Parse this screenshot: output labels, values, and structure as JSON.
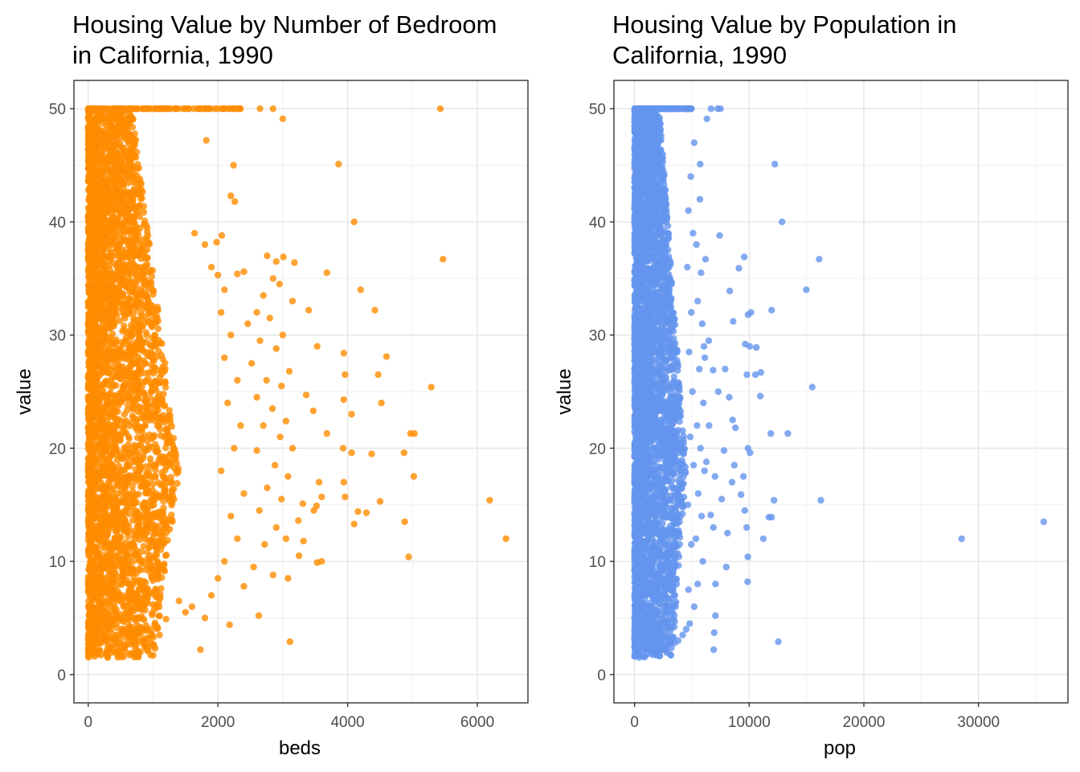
{
  "chart_data": [
    {
      "type": "scatter",
      "title": "Housing Value by Number of Bedroom\nin California, 1990",
      "xlabel": "beds",
      "ylabel": "value",
      "xlim": [
        -220,
        6780
      ],
      "ylim": [
        -2.5,
        52.5
      ],
      "xticks": [
        0,
        2000,
        4000,
        6000
      ],
      "xtick_labels": [
        "0",
        "2000",
        "4000",
        "6000"
      ],
      "yticks": [
        0,
        10,
        20,
        30,
        40,
        50
      ],
      "ytick_labels": [
        "0",
        "10",
        "20",
        "30",
        "40",
        "50"
      ],
      "xminor": [
        1000,
        3000,
        5000
      ],
      "yminor": [
        5,
        15,
        25,
        35,
        45
      ],
      "grid": true,
      "color": "#FF8C00",
      "dense_cloud": {
        "x_min": 0,
        "x_typical_max": 1400,
        "y_min": 1.5,
        "y_max": 50,
        "approx_points": 4000
      },
      "points": [
        [
          5430,
          50
        ],
        [
          3000,
          49.1
        ],
        [
          3860,
          45.1
        ],
        [
          4100,
          40
        ],
        [
          5470,
          36.7
        ],
        [
          3680,
          35.5
        ],
        [
          4200,
          34
        ],
        [
          3400,
          32.2
        ],
        [
          4420,
          32.2
        ],
        [
          3530,
          29
        ],
        [
          3940,
          28.4
        ],
        [
          4600,
          28.1
        ],
        [
          3960,
          26.5
        ],
        [
          4470,
          26.5
        ],
        [
          5290,
          25.4
        ],
        [
          3360,
          24.7
        ],
        [
          3940,
          24.3
        ],
        [
          4520,
          24
        ],
        [
          4060,
          23
        ],
        [
          3470,
          23.3
        ],
        [
          3680,
          21.3
        ],
        [
          4970,
          21.3
        ],
        [
          5030,
          21.3
        ],
        [
          3930,
          20
        ],
        [
          4060,
          19.6
        ],
        [
          4370,
          19.5
        ],
        [
          4870,
          19.6
        ],
        [
          5020,
          17.5
        ],
        [
          3560,
          17
        ],
        [
          3940,
          17
        ],
        [
          3600,
          15.7
        ],
        [
          4160,
          14.4
        ],
        [
          4290,
          14.3
        ],
        [
          4500,
          15.3
        ],
        [
          4100,
          13.3
        ],
        [
          3240,
          13.6
        ],
        [
          3960,
          15.7
        ],
        [
          3520,
          14.9
        ],
        [
          3310,
          15.1
        ],
        [
          3480,
          14.5
        ],
        [
          4880,
          13.5
        ],
        [
          6190,
          15.4
        ],
        [
          6440,
          12
        ],
        [
          3320,
          11.8
        ],
        [
          3250,
          10.5
        ],
        [
          3600,
          10
        ],
        [
          3530,
          9.9
        ],
        [
          4940,
          10.4
        ],
        [
          3110,
          2.9
        ],
        [
          3080,
          8.5
        ],
        [
          2630,
          5.2
        ],
        [
          1730,
          2.2
        ],
        [
          2180,
          4.4
        ],
        [
          1200,
          4.9
        ],
        [
          2760,
          37
        ],
        [
          2900,
          36.5
        ],
        [
          3010,
          36.9
        ],
        [
          3180,
          36.4
        ],
        [
          2850,
          35
        ],
        [
          2950,
          34.5
        ],
        [
          2700,
          33.5
        ],
        [
          3150,
          33
        ],
        [
          2600,
          32
        ],
        [
          2800,
          31.5
        ],
        [
          2460,
          31
        ],
        [
          3000,
          30
        ],
        [
          2650,
          29.5
        ],
        [
          2900,
          28.8
        ],
        [
          2520,
          27.5
        ],
        [
          3100,
          26.8
        ],
        [
          2750,
          26
        ],
        [
          2980,
          25.5
        ],
        [
          2600,
          24.5
        ],
        [
          2840,
          23.5
        ],
        [
          3050,
          22.4
        ],
        [
          2700,
          22
        ],
        [
          2960,
          21
        ],
        [
          3150,
          20
        ],
        [
          2600,
          19.8
        ],
        [
          2880,
          18.5
        ],
        [
          3080,
          17.5
        ],
        [
          2760,
          16.5
        ],
        [
          2980,
          15.5
        ],
        [
          2640,
          14.5
        ],
        [
          2900,
          13
        ],
        [
          3050,
          12
        ],
        [
          2720,
          11.5
        ],
        [
          2550,
          9.5
        ],
        [
          2850,
          8.8
        ],
        [
          2400,
          7.8
        ],
        [
          2200,
          42.3
        ],
        [
          2260,
          41.8
        ],
        [
          2240,
          45
        ],
        [
          1820,
          47.2
        ],
        [
          2060,
          38.8
        ],
        [
          1980,
          38.2
        ],
        [
          2310,
          50
        ],
        [
          2650,
          50
        ],
        [
          2850,
          50
        ],
        [
          2000,
          35.3
        ],
        [
          2300,
          35.4
        ],
        [
          2400,
          35.6
        ],
        [
          1640,
          39
        ],
        [
          1800,
          38
        ],
        [
          1900,
          36
        ],
        [
          2100,
          34
        ],
        [
          2050,
          32
        ],
        [
          2200,
          30
        ],
        [
          2100,
          28
        ],
        [
          2300,
          26
        ],
        [
          2150,
          24
        ],
        [
          2350,
          22
        ],
        [
          2250,
          20
        ],
        [
          2050,
          18
        ],
        [
          2400,
          16
        ],
        [
          2200,
          14
        ],
        [
          2300,
          12
        ],
        [
          2100,
          10
        ],
        [
          2000,
          8.5
        ],
        [
          1900,
          7
        ],
        [
          1600,
          6
        ],
        [
          1500,
          5.5
        ],
        [
          1400,
          6.5
        ],
        [
          1800,
          5
        ],
        [
          1100,
          3.5
        ],
        [
          900,
          4
        ],
        [
          700,
          3.2
        ],
        [
          500,
          2.8
        ],
        [
          300,
          1.5
        ],
        [
          150,
          2
        ],
        [
          100,
          1.6
        ],
        [
          800,
          4.2
        ]
      ]
    },
    {
      "type": "scatter",
      "title": "Housing Value by Population in\nCalifornia, 1990",
      "xlabel": "pop",
      "ylabel": "value",
      "xlim": [
        -1800,
        37800
      ],
      "ylim": [
        -2.5,
        52.5
      ],
      "xticks": [
        0,
        10000,
        20000,
        30000
      ],
      "xtick_labels": [
        "0",
        "10000",
        "20000",
        "30000"
      ],
      "yticks": [
        0,
        10,
        20,
        30,
        40,
        50
      ],
      "ytick_labels": [
        "0",
        "10",
        "20",
        "30",
        "40",
        "50"
      ],
      "xminor": [
        5000,
        15000,
        25000,
        35000
      ],
      "yminor": [
        5,
        15,
        25,
        35,
        45
      ],
      "grid": true,
      "color": "#6495ED",
      "dense_cloud": {
        "x_min": 0,
        "x_typical_max": 4500,
        "y_min": 1.5,
        "y_max": 50,
        "approx_points": 4000
      },
      "points": [
        [
          35680,
          13.5
        ],
        [
          28530,
          12
        ],
        [
          16250,
          15.4
        ],
        [
          16100,
          36.7
        ],
        [
          15500,
          25.4
        ],
        [
          14980,
          34
        ],
        [
          13370,
          21.3
        ],
        [
          12860,
          40
        ],
        [
          12540,
          2.9
        ],
        [
          12230,
          45.1
        ],
        [
          12160,
          15.4
        ],
        [
          11950,
          32.2
        ],
        [
          11960,
          13.9
        ],
        [
          11880,
          21.3
        ],
        [
          11710,
          13.9
        ],
        [
          11230,
          12
        ],
        [
          11020,
          26.7
        ],
        [
          10970,
          24.6
        ],
        [
          10620,
          28.9
        ],
        [
          10540,
          26.5
        ],
        [
          10150,
          32
        ],
        [
          10050,
          29
        ],
        [
          9900,
          31.8
        ],
        [
          9800,
          26.5
        ],
        [
          9890,
          20
        ],
        [
          10070,
          19.6
        ],
        [
          9570,
          36.9
        ],
        [
          9650,
          29.2
        ],
        [
          9490,
          17.5
        ],
        [
          9880,
          10.4
        ],
        [
          9860,
          8.2
        ],
        [
          9780,
          13
        ],
        [
          9610,
          14.5
        ],
        [
          9290,
          15.9
        ],
        [
          9100,
          35.9
        ],
        [
          8800,
          21.8
        ],
        [
          8600,
          31.2
        ],
        [
          8550,
          22.5
        ],
        [
          8700,
          18.5
        ],
        [
          8500,
          17
        ],
        [
          8300,
          33.9
        ],
        [
          8260,
          24.5
        ],
        [
          7420,
          38.8
        ],
        [
          7500,
          50
        ],
        [
          7250,
          50
        ],
        [
          6670,
          50
        ],
        [
          6310,
          49.1
        ],
        [
          6190,
          36.7
        ],
        [
          6130,
          28
        ],
        [
          6850,
          26.9
        ],
        [
          6270,
          18.8
        ],
        [
          7020,
          17.5
        ],
        [
          6880,
          13
        ],
        [
          7060,
          8
        ],
        [
          7050,
          5.2
        ],
        [
          6900,
          2.2
        ],
        [
          6950,
          3.7
        ],
        [
          6640,
          14.1
        ],
        [
          6470,
          29.5
        ],
        [
          5720,
          45.1
        ],
        [
          5700,
          42
        ],
        [
          5400,
          38
        ],
        [
          5800,
          35.5
        ],
        [
          5500,
          33
        ],
        [
          5900,
          31
        ],
        [
          6050,
          29
        ],
        [
          5650,
          27
        ],
        [
          6000,
          24
        ],
        [
          5450,
          22
        ],
        [
          5750,
          20
        ],
        [
          6100,
          18
        ],
        [
          5550,
          16
        ],
        [
          5850,
          14
        ],
        [
          5350,
          12
        ],
        [
          5950,
          10
        ],
        [
          5500,
          8
        ],
        [
          5200,
          6
        ],
        [
          4800,
          4.5
        ],
        [
          4500,
          4
        ],
        [
          4200,
          3.5
        ],
        [
          3800,
          3
        ],
        [
          3500,
          2.8
        ],
        [
          2800,
          2.5
        ],
        [
          2000,
          2.3
        ],
        [
          1500,
          2
        ],
        [
          900,
          1.6
        ],
        [
          400,
          1.5
        ],
        [
          200,
          1.8
        ],
        [
          5200,
          47
        ],
        [
          4900,
          44
        ],
        [
          4700,
          41
        ],
        [
          5100,
          39
        ],
        [
          4600,
          36
        ],
        [
          4950,
          32
        ],
        [
          4750,
          28.5
        ],
        [
          5050,
          25
        ],
        [
          4850,
          21
        ],
        [
          5150,
          18.5
        ],
        [
          4650,
          15
        ],
        [
          4950,
          11.5
        ],
        [
          4700,
          7.5
        ],
        [
          6500,
          22
        ],
        [
          7800,
          19.8
        ],
        [
          8100,
          12.5
        ],
        [
          7600,
          15.5
        ],
        [
          7300,
          25
        ],
        [
          7900,
          27
        ],
        [
          8000,
          9.5
        ]
      ]
    }
  ]
}
